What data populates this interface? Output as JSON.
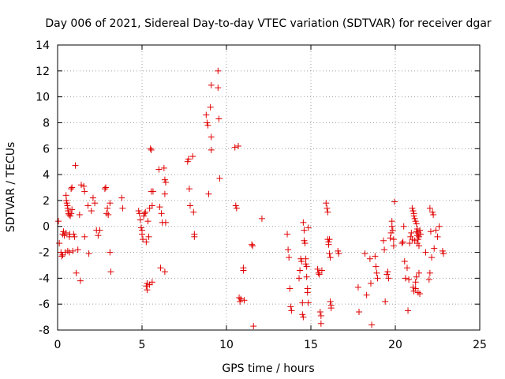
{
  "chart_data": {
    "type": "scatter",
    "title": "Day 006 of 2021, Sidereal Day-to-day VTEC variation (SDTVAR) for receiver dgar",
    "xlabel": "GPS time / hours",
    "ylabel": "SDTVAR / TECUs",
    "xlim": [
      0,
      25
    ],
    "ylim": [
      -8,
      14
    ],
    "xticks": [
      0,
      5,
      10,
      15,
      20,
      25
    ],
    "yticks": [
      -8,
      -6,
      -4,
      -2,
      0,
      2,
      4,
      6,
      8,
      10,
      12,
      14
    ],
    "grid": true,
    "marker": "+",
    "color": "#e00000",
    "series": [
      {
        "name": "SDTVAR",
        "points": [
          [
            0.05,
            0.4
          ],
          [
            0.1,
            -1.3
          ],
          [
            0.2,
            -2.0
          ],
          [
            0.25,
            -2.3
          ],
          [
            0.3,
            -2.2
          ],
          [
            0.3,
            -0.6
          ],
          [
            0.35,
            -0.4
          ],
          [
            0.4,
            -0.7
          ],
          [
            0.45,
            -2.0
          ],
          [
            0.5,
            -0.5
          ],
          [
            0.5,
            2.4
          ],
          [
            0.52,
            2.0
          ],
          [
            0.55,
            1.8
          ],
          [
            0.58,
            1.6
          ],
          [
            0.6,
            1.4
          ],
          [
            0.62,
            1.2
          ],
          [
            0.65,
            1.0
          ],
          [
            0.68,
            0.9
          ],
          [
            0.7,
            -0.8
          ],
          [
            0.72,
            -0.6
          ],
          [
            0.75,
            0.8
          ],
          [
            0.8,
            1.0
          ],
          [
            0.85,
            1.3
          ],
          [
            0.6,
            -1.9
          ],
          [
            0.7,
            -2.0
          ],
          [
            0.8,
            2.9
          ],
          [
            0.85,
            3.0
          ],
          [
            0.9,
            -1.9
          ],
          [
            0.95,
            -0.6
          ],
          [
            1.0,
            -0.8
          ],
          [
            1.05,
            4.7
          ],
          [
            1.1,
            -3.6
          ],
          [
            1.2,
            -1.8
          ],
          [
            1.3,
            0.9
          ],
          [
            1.35,
            -4.2
          ],
          [
            1.4,
            3.2
          ],
          [
            1.55,
            3.1
          ],
          [
            1.6,
            2.7
          ],
          [
            1.6,
            -0.8
          ],
          [
            1.8,
            1.6
          ],
          [
            1.85,
            -2.1
          ],
          [
            2.0,
            1.2
          ],
          [
            2.1,
            2.2
          ],
          [
            2.2,
            1.8
          ],
          [
            2.3,
            -0.3
          ],
          [
            2.4,
            -0.7
          ],
          [
            2.5,
            -0.3
          ],
          [
            2.8,
            2.9
          ],
          [
            2.85,
            3.0
          ],
          [
            2.9,
            1.0
          ],
          [
            2.95,
            1.4
          ],
          [
            3.0,
            0.9
          ],
          [
            3.1,
            1.8
          ],
          [
            3.1,
            -2.0
          ],
          [
            3.15,
            -3.5
          ],
          [
            3.8,
            2.2
          ],
          [
            3.85,
            1.4
          ],
          [
            4.8,
            1.2
          ],
          [
            4.85,
            1.0
          ],
          [
            4.9,
            0.5
          ],
          [
            4.95,
            -0.1
          ],
          [
            5.0,
            -0.3
          ],
          [
            5.0,
            -0.6
          ],
          [
            5.05,
            -1.0
          ],
          [
            5.1,
            0.8
          ],
          [
            5.15,
            1.0
          ],
          [
            5.2,
            1.1
          ],
          [
            5.25,
            -1.2
          ],
          [
            5.25,
            -4.6
          ],
          [
            5.3,
            -4.4
          ],
          [
            5.3,
            -4.9
          ],
          [
            5.35,
            0.4
          ],
          [
            5.4,
            -0.8
          ],
          [
            5.45,
            1.4
          ],
          [
            5.45,
            -4.5
          ],
          [
            5.5,
            6.0
          ],
          [
            5.55,
            5.9
          ],
          [
            5.55,
            2.7
          ],
          [
            5.6,
            -4.3
          ],
          [
            5.6,
            1.6
          ],
          [
            5.65,
            2.7
          ],
          [
            6.0,
            4.4
          ],
          [
            6.05,
            1.5
          ],
          [
            6.1,
            -3.2
          ],
          [
            6.15,
            1.0
          ],
          [
            6.2,
            0.3
          ],
          [
            6.3,
            4.5
          ],
          [
            6.35,
            3.6
          ],
          [
            6.35,
            2.5
          ],
          [
            6.35,
            -3.5
          ],
          [
            6.4,
            3.4
          ],
          [
            6.4,
            0.3
          ],
          [
            7.7,
            5.0
          ],
          [
            7.75,
            5.2
          ],
          [
            7.8,
            2.9
          ],
          [
            7.85,
            1.6
          ],
          [
            8.0,
            5.4
          ],
          [
            8.05,
            1.1
          ],
          [
            8.1,
            -0.6
          ],
          [
            8.1,
            -0.8
          ],
          [
            8.8,
            8.6
          ],
          [
            8.85,
            8.0
          ],
          [
            8.9,
            7.8
          ],
          [
            8.95,
            2.5
          ],
          [
            9.05,
            9.2
          ],
          [
            9.1,
            10.9
          ],
          [
            9.1,
            6.9
          ],
          [
            9.1,
            5.9
          ],
          [
            9.5,
            12.0
          ],
          [
            9.5,
            10.7
          ],
          [
            9.55,
            8.3
          ],
          [
            9.6,
            3.7
          ],
          [
            10.5,
            6.1
          ],
          [
            10.55,
            1.6
          ],
          [
            10.6,
            1.4
          ],
          [
            10.7,
            6.2
          ],
          [
            10.75,
            -5.5
          ],
          [
            10.8,
            -5.8
          ],
          [
            10.85,
            -5.6
          ],
          [
            11.0,
            -3.2
          ],
          [
            11.0,
            -3.4
          ],
          [
            11.05,
            -5.7
          ],
          [
            11.5,
            -1.4
          ],
          [
            11.55,
            -1.5
          ],
          [
            11.6,
            -7.7
          ],
          [
            12.1,
            0.6
          ],
          [
            13.6,
            -0.6
          ],
          [
            13.65,
            -1.8
          ],
          [
            13.7,
            -2.4
          ],
          [
            13.75,
            -4.8
          ],
          [
            13.8,
            -6.2
          ],
          [
            13.85,
            -6.5
          ],
          [
            14.3,
            -4.0
          ],
          [
            14.35,
            -3.4
          ],
          [
            14.4,
            -2.5
          ],
          [
            14.45,
            -2.7
          ],
          [
            14.5,
            -5.9
          ],
          [
            14.5,
            -6.8
          ],
          [
            14.55,
            -7.0
          ],
          [
            14.55,
            0.3
          ],
          [
            14.6,
            -0.3
          ],
          [
            14.6,
            -1.1
          ],
          [
            14.65,
            -1.3
          ],
          [
            14.7,
            -2.5
          ],
          [
            14.7,
            -2.9
          ],
          [
            14.75,
            -3.1
          ],
          [
            14.75,
            -3.9
          ],
          [
            14.8,
            -4.8
          ],
          [
            14.8,
            -5.1
          ],
          [
            14.85,
            -5.9
          ],
          [
            14.85,
            -0.1
          ],
          [
            15.4,
            -3.3
          ],
          [
            15.45,
            -3.6
          ],
          [
            15.5,
            -3.7
          ],
          [
            15.55,
            -6.6
          ],
          [
            15.6,
            -6.9
          ],
          [
            15.6,
            -7.5
          ],
          [
            15.65,
            -3.4
          ],
          [
            15.9,
            1.8
          ],
          [
            15.95,
            1.4
          ],
          [
            16.0,
            1.1
          ],
          [
            16.0,
            -1.0
          ],
          [
            16.05,
            -1.2
          ],
          [
            16.05,
            -1.4
          ],
          [
            16.1,
            -1.0
          ],
          [
            16.1,
            -2.1
          ],
          [
            16.15,
            -2.4
          ],
          [
            16.15,
            -5.8
          ],
          [
            16.2,
            -6.1
          ],
          [
            16.2,
            -6.3
          ],
          [
            16.6,
            -1.9
          ],
          [
            16.65,
            -2.1
          ],
          [
            17.8,
            -4.7
          ],
          [
            17.85,
            -6.6
          ],
          [
            18.2,
            -2.1
          ],
          [
            18.3,
            -5.3
          ],
          [
            18.5,
            -2.5
          ],
          [
            18.55,
            -4.4
          ],
          [
            18.6,
            -7.6
          ],
          [
            18.8,
            -2.3
          ],
          [
            18.85,
            -3.1
          ],
          [
            18.9,
            -3.6
          ],
          [
            18.95,
            -4.0
          ],
          [
            19.3,
            -1.1
          ],
          [
            19.35,
            -1.8
          ],
          [
            19.4,
            -5.8
          ],
          [
            19.5,
            -3.7
          ],
          [
            19.55,
            -3.5
          ],
          [
            19.6,
            -4.0
          ],
          [
            19.7,
            -0.9
          ],
          [
            19.75,
            -0.5
          ],
          [
            19.8,
            0.4
          ],
          [
            19.8,
            0.0
          ],
          [
            19.85,
            -0.3
          ],
          [
            19.9,
            -1.0
          ],
          [
            19.9,
            -1.5
          ],
          [
            19.95,
            1.9
          ],
          [
            20.4,
            -1.3
          ],
          [
            20.45,
            -1.2
          ],
          [
            20.5,
            0.0
          ],
          [
            20.55,
            -2.7
          ],
          [
            20.6,
            -4.0
          ],
          [
            20.7,
            -3.2
          ],
          [
            20.75,
            -6.5
          ],
          [
            20.8,
            -4.1
          ],
          [
            20.85,
            -1.3
          ],
          [
            20.9,
            -0.8
          ],
          [
            20.95,
            -0.5
          ],
          [
            21.0,
            1.4
          ],
          [
            21.0,
            -1.0
          ],
          [
            21.05,
            1.2
          ],
          [
            21.05,
            -4.7
          ],
          [
            21.1,
            1.0
          ],
          [
            21.1,
            0.8
          ],
          [
            21.1,
            -5.0
          ],
          [
            21.15,
            0.6
          ],
          [
            21.15,
            -1.1
          ],
          [
            21.2,
            0.4
          ],
          [
            21.2,
            -4.3
          ],
          [
            21.2,
            -4.8
          ],
          [
            21.25,
            0.2
          ],
          [
            21.25,
            -0.4
          ],
          [
            21.25,
            -3.9
          ],
          [
            21.3,
            -0.2
          ],
          [
            21.3,
            -0.7
          ],
          [
            21.3,
            -1.3
          ],
          [
            21.35,
            -0.5
          ],
          [
            21.35,
            -1.0
          ],
          [
            21.35,
            -5.1
          ],
          [
            21.4,
            -0.8
          ],
          [
            21.4,
            -1.5
          ],
          [
            21.4,
            -3.6
          ],
          [
            21.45,
            -0.3
          ],
          [
            21.45,
            -5.2
          ],
          [
            21.5,
            -0.6
          ],
          [
            21.8,
            -2.0
          ],
          [
            22.0,
            -4.1
          ],
          [
            22.05,
            -3.6
          ],
          [
            22.05,
            1.4
          ],
          [
            22.1,
            -0.4
          ],
          [
            22.15,
            -2.4
          ],
          [
            22.2,
            1.1
          ],
          [
            22.25,
            0.9
          ],
          [
            22.3,
            -1.7
          ],
          [
            22.4,
            -0.3
          ],
          [
            22.5,
            -0.8
          ],
          [
            22.6,
            0.0
          ],
          [
            22.8,
            -1.9
          ],
          [
            22.85,
            -2.1
          ]
        ]
      }
    ]
  }
}
